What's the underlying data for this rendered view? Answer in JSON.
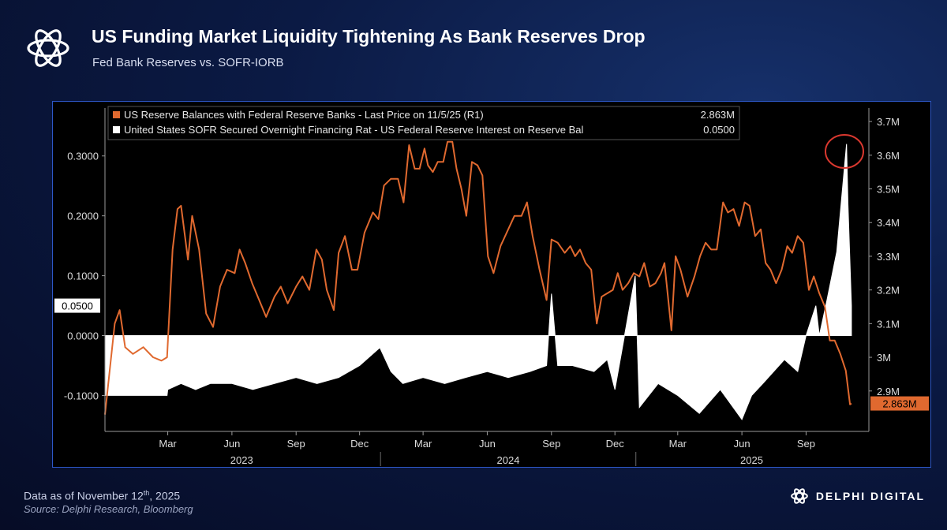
{
  "header": {
    "title": "US Funding Market Liquidity Tightening As Bank Reserves Drop",
    "subtitle": "Fed Bank Reserves vs. SOFR-IORB"
  },
  "footer": {
    "as_of_prefix": "Data as of November 12",
    "as_of_suffix": "th",
    "as_of_year": ", 2025",
    "source": "Source: Delphi Research, Bloomberg"
  },
  "brand": {
    "name": "DELPHI DIGITAL",
    "icon": "delphi-knot-icon"
  },
  "colors": {
    "reserves": "#e0692f",
    "spread": "#ffffff",
    "highlight": "#d9382f",
    "frame": "#2d57c7"
  },
  "chart_data": {
    "type": "line",
    "legend": [
      {
        "label": "US Reserve Balances with Federal Reserve Banks - Last Price on 11/5/25 (R1)",
        "value": "2.863M",
        "color": "#e0692f"
      },
      {
        "label": "United States SOFR Secured Overnight Financing Rat - US Federal Reserve Interest on Reserve Bal",
        "value": "0.0500",
        "color": "#ffffff"
      }
    ],
    "x_ticks": [
      "Mar",
      "Jun",
      "Sep",
      "Dec",
      "Mar",
      "Jun",
      "Sep",
      "Dec",
      "Mar",
      "Jun",
      "Sep"
    ],
    "x_years": [
      "2023",
      "2024",
      "2025"
    ],
    "x_range": [
      "2022-12-01",
      "2025-11-30"
    ],
    "left_axis": {
      "ticks": [
        "0.3000",
        "0.2000",
        "0.1000",
        "0.0000",
        "-0.1000"
      ],
      "ylim": [
        -0.16,
        0.38
      ]
    },
    "right_axis": {
      "ticks": [
        "3.7M",
        "3.6M",
        "3.5M",
        "3.4M",
        "3.3M",
        "3.2M",
        "3.1M",
        "3M",
        "2.9M"
      ],
      "ylim": [
        2.78,
        3.74
      ]
    },
    "last_labels": {
      "left": "0.0500",
      "right": "2.863M"
    },
    "annotation": "circle around spread spike near 0.32 in Oct 2025",
    "series": [
      {
        "name": "US Reserve Balances with Federal Reserve Banks",
        "axis": "right",
        "points": [
          [
            "2022-12-01",
            2.83
          ],
          [
            "2022-12-15",
            3.1
          ],
          [
            "2022-12-22",
            3.14
          ],
          [
            "2022-12-30",
            3.03
          ],
          [
            "2023-01-10",
            3.01
          ],
          [
            "2023-01-25",
            3.03
          ],
          [
            "2023-02-08",
            3.0
          ],
          [
            "2023-02-20",
            2.99
          ],
          [
            "2023-02-28",
            3.0
          ],
          [
            "2023-03-08",
            3.32
          ],
          [
            "2023-03-15",
            3.44
          ],
          [
            "2023-03-20",
            3.45
          ],
          [
            "2023-03-30",
            3.29
          ],
          [
            "2023-04-05",
            3.42
          ],
          [
            "2023-04-15",
            3.32
          ],
          [
            "2023-04-25",
            3.13
          ],
          [
            "2023-05-05",
            3.09
          ],
          [
            "2023-05-15",
            3.21
          ],
          [
            "2023-05-25",
            3.26
          ],
          [
            "2023-06-05",
            3.25
          ],
          [
            "2023-06-12",
            3.32
          ],
          [
            "2023-06-20",
            3.28
          ],
          [
            "2023-06-30",
            3.22
          ],
          [
            "2023-07-10",
            3.17
          ],
          [
            "2023-07-20",
            3.12
          ],
          [
            "2023-08-01",
            3.18
          ],
          [
            "2023-08-10",
            3.21
          ],
          [
            "2023-08-20",
            3.16
          ],
          [
            "2023-09-01",
            3.21
          ],
          [
            "2023-09-10",
            3.24
          ],
          [
            "2023-09-20",
            3.2
          ],
          [
            "2023-09-30",
            3.32
          ],
          [
            "2023-10-08",
            3.29
          ],
          [
            "2023-10-15",
            3.2
          ],
          [
            "2023-10-25",
            3.14
          ],
          [
            "2023-11-01",
            3.31
          ],
          [
            "2023-11-10",
            3.36
          ],
          [
            "2023-11-20",
            3.26
          ],
          [
            "2023-11-28",
            3.26
          ],
          [
            "2023-12-08",
            3.37
          ],
          [
            "2023-12-20",
            3.43
          ],
          [
            "2023-12-28",
            3.41
          ],
          [
            "2024-01-05",
            3.51
          ],
          [
            "2024-01-15",
            3.53
          ],
          [
            "2024-01-25",
            3.53
          ],
          [
            "2024-02-02",
            3.46
          ],
          [
            "2024-02-10",
            3.63
          ],
          [
            "2024-02-18",
            3.56
          ],
          [
            "2024-02-25",
            3.56
          ],
          [
            "2024-03-03",
            3.62
          ],
          [
            "2024-03-08",
            3.57
          ],
          [
            "2024-03-15",
            3.55
          ],
          [
            "2024-03-22",
            3.58
          ],
          [
            "2024-03-30",
            3.58
          ],
          [
            "2024-04-05",
            3.64
          ],
          [
            "2024-04-12",
            3.64
          ],
          [
            "2024-04-18",
            3.56
          ],
          [
            "2024-04-25",
            3.5
          ],
          [
            "2024-05-02",
            3.42
          ],
          [
            "2024-05-10",
            3.58
          ],
          [
            "2024-05-18",
            3.57
          ],
          [
            "2024-05-25",
            3.54
          ],
          [
            "2024-06-02",
            3.3
          ],
          [
            "2024-06-10",
            3.25
          ],
          [
            "2024-06-20",
            3.33
          ],
          [
            "2024-07-01",
            3.38
          ],
          [
            "2024-07-10",
            3.42
          ],
          [
            "2024-07-20",
            3.42
          ],
          [
            "2024-07-28",
            3.46
          ],
          [
            "2024-08-05",
            3.36
          ],
          [
            "2024-08-15",
            3.26
          ],
          [
            "2024-08-25",
            3.17
          ],
          [
            "2024-09-01",
            3.35
          ],
          [
            "2024-09-10",
            3.34
          ],
          [
            "2024-09-20",
            3.31
          ],
          [
            "2024-09-28",
            3.33
          ],
          [
            "2024-10-05",
            3.3
          ],
          [
            "2024-10-12",
            3.32
          ],
          [
            "2024-10-20",
            3.28
          ],
          [
            "2024-10-28",
            3.26
          ],
          [
            "2024-11-05",
            3.1
          ],
          [
            "2024-11-12",
            3.18
          ],
          [
            "2024-11-20",
            3.19
          ],
          [
            "2024-11-28",
            3.2
          ],
          [
            "2024-12-05",
            3.25
          ],
          [
            "2024-12-12",
            3.2
          ],
          [
            "2024-12-20",
            3.22
          ],
          [
            "2024-12-28",
            3.25
          ],
          [
            "2025-01-05",
            3.24
          ],
          [
            "2025-01-12",
            3.28
          ],
          [
            "2025-01-20",
            3.21
          ],
          [
            "2025-01-28",
            3.22
          ],
          [
            "2025-02-05",
            3.25
          ],
          [
            "2025-02-10",
            3.28
          ],
          [
            "2025-02-20",
            3.08
          ],
          [
            "2025-02-26",
            3.3
          ],
          [
            "2025-03-05",
            3.26
          ],
          [
            "2025-03-15",
            3.18
          ],
          [
            "2025-03-25",
            3.24
          ],
          [
            "2025-04-02",
            3.3
          ],
          [
            "2025-04-10",
            3.34
          ],
          [
            "2025-04-18",
            3.32
          ],
          [
            "2025-04-26",
            3.32
          ],
          [
            "2025-05-05",
            3.46
          ],
          [
            "2025-05-12",
            3.43
          ],
          [
            "2025-05-20",
            3.44
          ],
          [
            "2025-05-28",
            3.39
          ],
          [
            "2025-06-05",
            3.46
          ],
          [
            "2025-06-12",
            3.45
          ],
          [
            "2025-06-20",
            3.36
          ],
          [
            "2025-06-28",
            3.38
          ],
          [
            "2025-07-05",
            3.28
          ],
          [
            "2025-07-12",
            3.26
          ],
          [
            "2025-07-20",
            3.22
          ],
          [
            "2025-07-28",
            3.26
          ],
          [
            "2025-08-05",
            3.33
          ],
          [
            "2025-08-12",
            3.31
          ],
          [
            "2025-08-20",
            3.36
          ],
          [
            "2025-08-28",
            3.34
          ],
          [
            "2025-09-05",
            3.2
          ],
          [
            "2025-09-12",
            3.24
          ],
          [
            "2025-09-20",
            3.19
          ],
          [
            "2025-09-28",
            3.15
          ],
          [
            "2025-10-05",
            3.05
          ],
          [
            "2025-10-12",
            3.05
          ],
          [
            "2025-10-20",
            3.01
          ],
          [
            "2025-10-28",
            2.96
          ],
          [
            "2025-11-03",
            2.86
          ],
          [
            "2025-11-05",
            2.863
          ]
        ]
      },
      {
        "name": "SOFR - IORB spread",
        "axis": "left",
        "points": [
          [
            "2022-12-01",
            -0.1
          ],
          [
            "2023-02-28",
            -0.1
          ],
          [
            "2023-03-01",
            -0.09
          ],
          [
            "2023-03-20",
            -0.08
          ],
          [
            "2023-04-10",
            -0.09
          ],
          [
            "2023-05-01",
            -0.08
          ],
          [
            "2023-06-01",
            -0.08
          ],
          [
            "2023-07-01",
            -0.09
          ],
          [
            "2023-08-01",
            -0.08
          ],
          [
            "2023-09-01",
            -0.07
          ],
          [
            "2023-10-01",
            -0.08
          ],
          [
            "2023-11-01",
            -0.07
          ],
          [
            "2023-12-01",
            -0.05
          ],
          [
            "2023-12-30",
            -0.02
          ],
          [
            "2024-01-15",
            -0.06
          ],
          [
            "2024-02-01",
            -0.08
          ],
          [
            "2024-03-01",
            -0.07
          ],
          [
            "2024-04-01",
            -0.08
          ],
          [
            "2024-05-01",
            -0.07
          ],
          [
            "2024-06-01",
            -0.06
          ],
          [
            "2024-07-01",
            -0.07
          ],
          [
            "2024-08-01",
            -0.06
          ],
          [
            "2024-08-25",
            -0.05
          ],
          [
            "2024-09-01",
            0.07
          ],
          [
            "2024-09-10",
            -0.05
          ],
          [
            "2024-10-01",
            -0.05
          ],
          [
            "2024-11-01",
            -0.06
          ],
          [
            "2024-11-20",
            -0.04
          ],
          [
            "2024-12-01",
            -0.09
          ],
          [
            "2024-12-30",
            0.1
          ],
          [
            "2025-01-05",
            -0.12
          ],
          [
            "2025-02-01",
            -0.08
          ],
          [
            "2025-03-01",
            -0.1
          ],
          [
            "2025-04-01",
            -0.13
          ],
          [
            "2025-05-01",
            -0.09
          ],
          [
            "2025-06-01",
            -0.14
          ],
          [
            "2025-06-15",
            -0.1
          ],
          [
            "2025-07-01",
            -0.08
          ],
          [
            "2025-08-01",
            -0.04
          ],
          [
            "2025-08-20",
            -0.06
          ],
          [
            "2025-09-01",
            0.0
          ],
          [
            "2025-09-15",
            0.05
          ],
          [
            "2025-09-20",
            0.0
          ],
          [
            "2025-10-01",
            0.06
          ],
          [
            "2025-10-15",
            0.14
          ],
          [
            "2025-10-29",
            0.32
          ],
          [
            "2025-10-31",
            0.22
          ],
          [
            "2025-11-05",
            0.05
          ]
        ]
      }
    ]
  }
}
